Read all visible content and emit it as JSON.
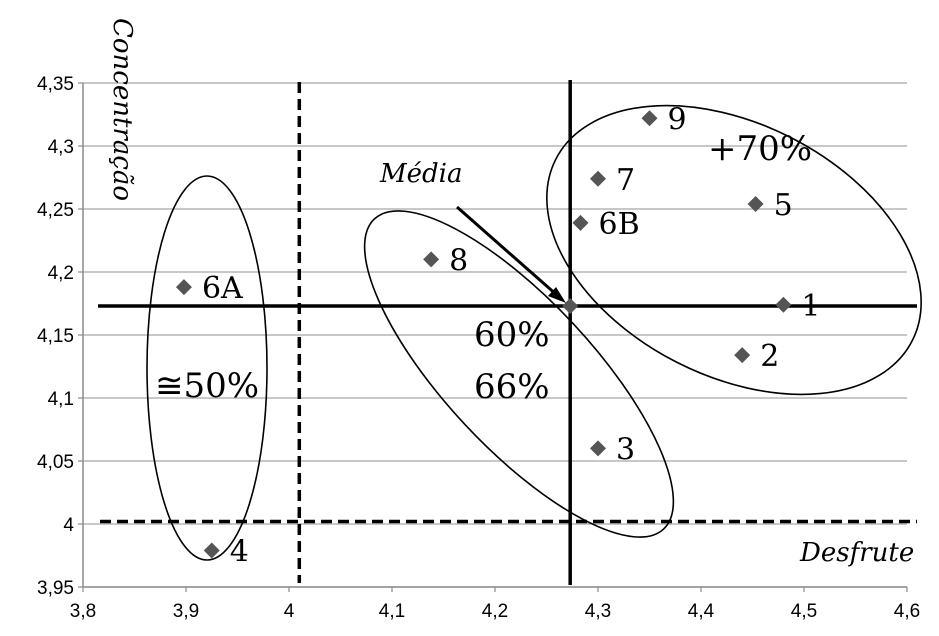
{
  "chart_data": {
    "type": "scatter",
    "title": "",
    "xlabel": "Desfrute",
    "ylabel": "Concentração",
    "xlim": [
      3.8,
      4.6
    ],
    "ylim": [
      3.95,
      4.35
    ],
    "x_ticks": [
      "3,8",
      "3,9",
      "4",
      "4,1",
      "4,2",
      "4,3",
      "4,4",
      "4,5",
      "4,6"
    ],
    "y_ticks": [
      "3,95",
      "4",
      "4,05",
      "4,1",
      "4,15",
      "4,2",
      "4,25",
      "4,3",
      "4,35"
    ],
    "grid": "horizontal",
    "legend": "none",
    "marker_color": "#555555",
    "points": [
      {
        "label": "1",
        "x": 4.48,
        "y": 4.174
      },
      {
        "label": "2",
        "x": 4.44,
        "y": 4.134
      },
      {
        "label": "3",
        "x": 4.3,
        "y": 4.06
      },
      {
        "label": "4",
        "x": 3.925,
        "y": 3.979
      },
      {
        "label": "5",
        "x": 4.453,
        "y": 4.254
      },
      {
        "label": "6A",
        "x": 3.898,
        "y": 4.188
      },
      {
        "label": "6B",
        "x": 4.283,
        "y": 4.239
      },
      {
        "label": "7",
        "x": 4.3,
        "y": 4.274
      },
      {
        "label": "8",
        "x": 4.138,
        "y": 4.21
      },
      {
        "label": "9",
        "x": 4.35,
        "y": 4.322
      }
    ],
    "mean": {
      "label": "Média",
      "x": 4.273,
      "y": 4.173
    },
    "dashed_lines": {
      "vertical_x": 4.01,
      "horizontal_y": 4.002
    },
    "annotations": [
      "+70%",
      "60%",
      "66%",
      "≅50%"
    ]
  }
}
